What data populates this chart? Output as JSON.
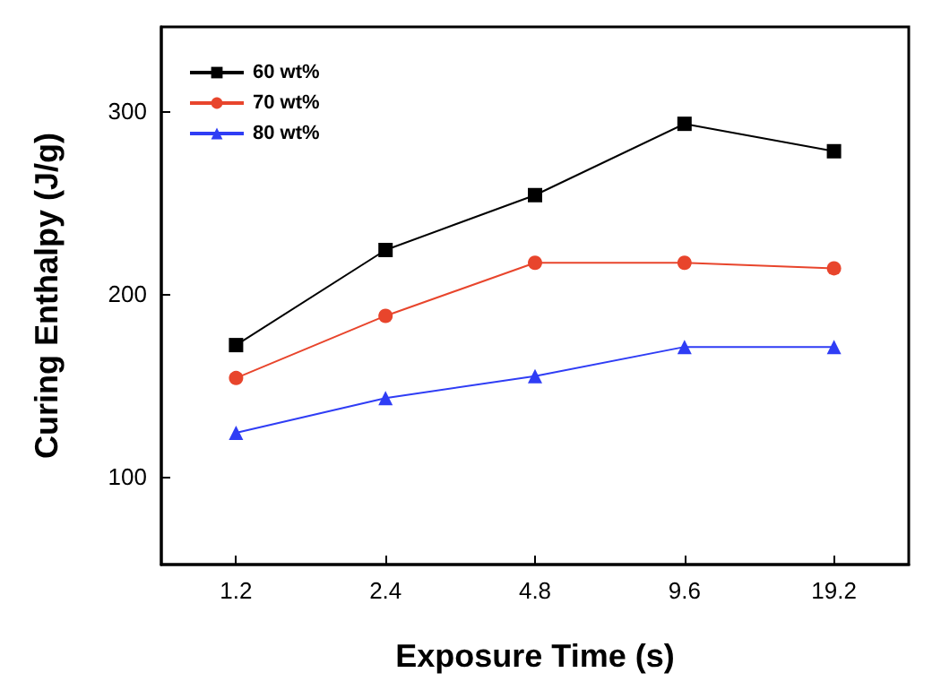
{
  "chart_data": {
    "type": "line",
    "xlabel": "Exposure Time (s)",
    "ylabel": "Curing Enthalpy (J/g)",
    "categories": [
      "1.2",
      "2.4",
      "4.8",
      "9.6",
      "19.2"
    ],
    "series": [
      {
        "name": "60 wt%",
        "color": "#000000",
        "marker": "square",
        "values": [
          172,
          224,
          254,
          293,
          278
        ]
      },
      {
        "name": "70 wt%",
        "color": "#e8452c",
        "marker": "circle",
        "values": [
          154,
          188,
          217,
          217,
          214
        ]
      },
      {
        "name": "80 wt%",
        "color": "#2f3df5",
        "marker": "triangle",
        "values": [
          124,
          143,
          155,
          171,
          171
        ]
      }
    ],
    "ylim": [
      52,
      346
    ],
    "yticks": [
      100,
      200,
      300
    ],
    "grid": false,
    "legend": "top left",
    "line_style": "solid"
  }
}
